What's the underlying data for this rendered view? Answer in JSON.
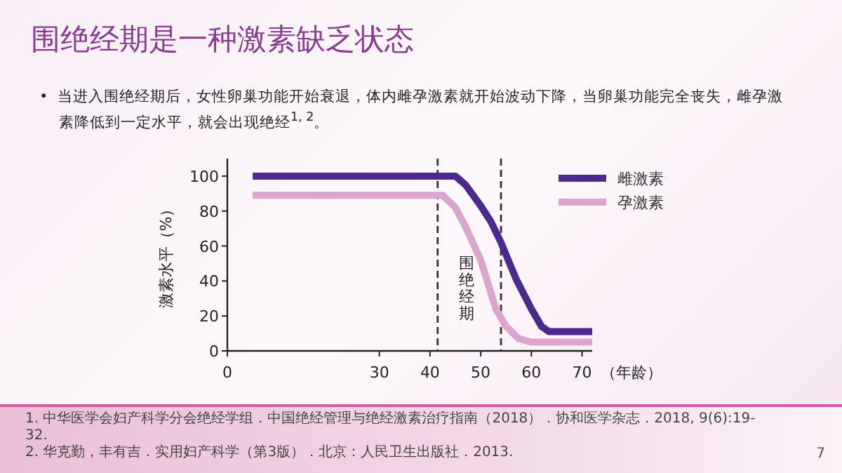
{
  "chart_data": {
    "type": "line",
    "title": "围绝经期是一种激素缺乏状态",
    "subtitle": "•  当进入围绝经期后，女性卵巢功能开始衰退，体内雌孕激素就开始波动下降，当卵巢功能完全丧失，雌孕激素降低到一定水平，就会出现绝经$^{1, 2}$。",
    "xlabel": "（年龄）",
    "ylabel": "激素水平（%）",
    "xlim": [
      0,
      72
    ],
    "xticks": [
      0,
      30,
      40,
      50,
      60,
      70
    ],
    "ylim": [
      0,
      110
    ],
    "yticks": [
      0,
      20,
      40,
      60,
      80,
      100
    ],
    "grid": false,
    "legend": "right",
    "marker": "none",
    "line_style": "solid",
    "series": [
      {
        "name": "雌激素",
        "color": "#4b2a8c",
        "x": [
          5,
          45,
          47,
          50,
          52,
          54,
          57,
          60,
          62,
          63.5,
          72
        ],
        "values": [
          100,
          100,
          95,
          83,
          74,
          62,
          41,
          24,
          14,
          11,
          11
        ]
      },
      {
        "name": "孕激素",
        "color": "#dba5cf",
        "x": [
          5,
          42.5,
          45,
          47,
          50,
          53,
          55,
          57.5,
          60,
          72
        ],
        "values": [
          89,
          89,
          82,
          71,
          52,
          24,
          14,
          7,
          5,
          5
        ]
      }
    ],
    "ref_lines": [
      {
        "axis": "x",
        "value": 41.5,
        "color": "#333333",
        "line_style": "dashed"
      },
      {
        "axis": "x",
        "value": 54,
        "color": "#333333",
        "line_style": "dashed"
      }
    ],
    "annotations": [
      "围绝经期",
      "1.  中华医学会妇产科学分会绝经学组．中国绝经管理与绝经激素治疗指南（2018）．协和医学杂志．2018, 9(6):19-32.",
      "2.  华克勤，丰有吉．实用妇产科学（第3版）．北京：人民卫生出版社．2013.",
      "7"
    ]
  }
}
